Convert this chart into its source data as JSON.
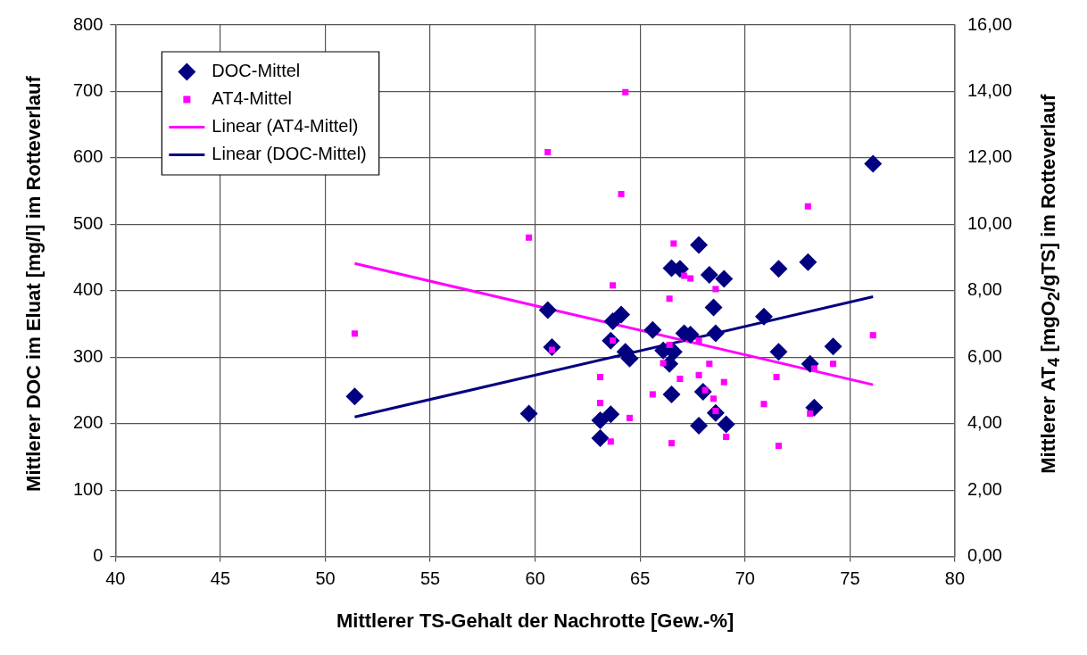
{
  "chart_data": {
    "type": "scatter",
    "xlabel": "Mittlerer TS-Gehalt der Nachrotte [Gew.-%]",
    "ylabel": "Mittlerer DOC im Eluat [mg/l] im Rotteverlauf",
    "y2label": "Mittlerer AT$_{4}$ [mgO$_{2}$/gTS] im Rotteverlauf",
    "xlim": [
      40,
      80
    ],
    "xticks": [
      40,
      45,
      50,
      55,
      60,
      65,
      70,
      75,
      80
    ],
    "ylim": [
      0,
      800
    ],
    "yticks": [
      0,
      100,
      200,
      300,
      400,
      500,
      600,
      700,
      800
    ],
    "y2lim": [
      0,
      16
    ],
    "y2ticks": [
      {
        "value": 0,
        "label": "0,00"
      },
      {
        "value": 2,
        "label": "2,00"
      },
      {
        "value": 4,
        "label": "4,00"
      },
      {
        "value": 6,
        "label": "6,00"
      },
      {
        "value": 8,
        "label": "8,00"
      },
      {
        "value": 10,
        "label": "10,00"
      },
      {
        "value": 12,
        "label": "12,00"
      },
      {
        "value": 14,
        "label": "14,00"
      },
      {
        "value": 16,
        "label": "16,00"
      }
    ],
    "grid": true,
    "legend": "top left",
    "series": [
      {
        "name": "DOC-Mittel",
        "type": "scatter",
        "marker": "diamond",
        "color": "#000080",
        "x": [
          51.4,
          59.7,
          60.6,
          60.8,
          63.1,
          63.1,
          63.6,
          63.7,
          63.6,
          64.1,
          64.3,
          64.5,
          65.6,
          66.5,
          66.9,
          67.8,
          68.3,
          68.5,
          68.6,
          67.1,
          67.4,
          66.1,
          66.6,
          66.4,
          66.5,
          68.0,
          68.6,
          67.8,
          69.0,
          71.6,
          73.0,
          70.9,
          71.6,
          73.1,
          74.2,
          73.3,
          69.1,
          76.1
        ],
        "values": [
          241,
          215,
          371,
          315,
          178,
          205,
          214,
          354,
          325,
          364,
          308,
          298,
          341,
          434,
          433,
          469,
          424,
          375,
          336,
          336,
          334,
          310,
          308,
          290,
          244,
          248,
          216,
          197,
          418,
          433,
          443,
          361,
          308,
          290,
          316,
          224,
          199,
          591
        ]
      },
      {
        "name": "AT4-Mittel",
        "type": "scatter",
        "marker": "square",
        "color": "#ff00ff",
        "axis": "y2",
        "x": [
          51.4,
          59.7,
          60.6,
          60.8,
          64.3,
          64.1,
          63.7,
          66.6,
          66.4,
          67.1,
          67.4,
          68.6,
          63.7,
          63.1,
          63.1,
          64.5,
          63.6,
          65.6,
          66.1,
          66.4,
          66.9,
          67.8,
          68.3,
          68.1,
          68.5,
          68.6,
          66.5,
          67.8,
          69.0,
          69.1,
          71.5,
          70.9,
          71.6,
          73.3,
          74.2,
          73.1,
          76.1,
          73.0
        ],
        "values": [
          6.71,
          9.6,
          12.17,
          6.22,
          13.98,
          10.91,
          8.16,
          9.42,
          7.76,
          8.45,
          8.37,
          8.05,
          6.5,
          5.4,
          4.62,
          4.17,
          3.46,
          4.88,
          5.82,
          6.37,
          5.35,
          5.46,
          5.8,
          5.01,
          4.75,
          4.38,
          3.41,
          6.5,
          5.25,
          3.6,
          5.4,
          4.59,
          3.33,
          5.66,
          5.8,
          4.3,
          6.66,
          10.54
        ]
      },
      {
        "name": "Linear (AT4-Mittel)",
        "type": "line",
        "marker": "none",
        "color": "#ff00ff",
        "axis": "y2",
        "x": [
          51.4,
          76.1
        ],
        "values": [
          8.82,
          5.17
        ]
      },
      {
        "name": "Linear (DOC-Mittel)",
        "type": "line",
        "marker": "none",
        "color": "#000080",
        "x": [
          51.4,
          76.1
        ],
        "values": [
          210,
          391
        ]
      }
    ]
  }
}
